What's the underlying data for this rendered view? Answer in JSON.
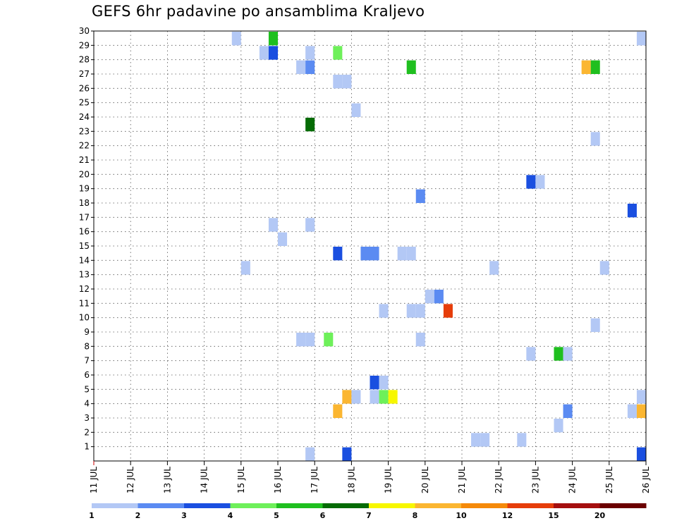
{
  "chart_data": {
    "type": "heatmap",
    "title": "GEFS 6hr padavine po ansamblima Kraljevo",
    "y_tick_labels": [
      "1",
      "2",
      "3",
      "4",
      "5",
      "6",
      "7",
      "8",
      "9",
      "10",
      "11",
      "12",
      "13",
      "14",
      "15",
      "16",
      "17",
      "18",
      "19",
      "20",
      "21",
      "22",
      "23",
      "24",
      "25",
      "26",
      "27",
      "28",
      "29",
      "30"
    ],
    "ylim": [
      0,
      30
    ],
    "x_tick_labels": [
      "11 JUL",
      "12 JUL",
      "13 JUL",
      "14 JUL",
      "15 JUL",
      "16 JUL",
      "17 JUL",
      "18 JUL",
      "19 JUL",
      "20 JUL",
      "21 JUL",
      "22 JUL",
      "23 JUL",
      "24 JUL",
      "25 JUL",
      "26 JUL"
    ],
    "x_unit": "day of July (fractional, 6-hour steps)",
    "xlim": [
      11,
      26
    ],
    "grid": true,
    "grid_style": "dotted",
    "colorbar": {
      "labels": [
        "1",
        "2",
        "3",
        "4",
        "5",
        "6",
        "7",
        "8",
        "10",
        "12",
        "15",
        "20"
      ],
      "colors": [
        "#b3c8f5",
        "#5b8bf2",
        "#1a4fe0",
        "#6ef05a",
        "#1fbf1f",
        "#056b05",
        "#f7f700",
        "#fbb631",
        "#f58a0a",
        "#e63d0a",
        "#a50f0f",
        "#6b0000"
      ]
    },
    "cells": [
      {
        "day": 14.75,
        "member": 30,
        "v": 1
      },
      {
        "day": 15.75,
        "member": 30,
        "v": 5
      },
      {
        "day": 25.75,
        "member": 30,
        "v": 1
      },
      {
        "day": 15.5,
        "member": 29,
        "v": 1
      },
      {
        "day": 15.75,
        "member": 29,
        "v": 3
      },
      {
        "day": 16.75,
        "member": 29,
        "v": 1
      },
      {
        "day": 17.5,
        "member": 29,
        "v": 4
      },
      {
        "day": 16.5,
        "member": 28,
        "v": 1
      },
      {
        "day": 16.75,
        "member": 28,
        "v": 2
      },
      {
        "day": 19.5,
        "member": 28,
        "v": 5
      },
      {
        "day": 24.25,
        "member": 28,
        "v": 8
      },
      {
        "day": 24.5,
        "member": 28,
        "v": 5
      },
      {
        "day": 17.5,
        "member": 27,
        "v": 1
      },
      {
        "day": 17.75,
        "member": 27,
        "v": 1
      },
      {
        "day": 18.0,
        "member": 25,
        "v": 1
      },
      {
        "day": 16.75,
        "member": 24,
        "v": 6
      },
      {
        "day": 24.5,
        "member": 23,
        "v": 1
      },
      {
        "day": 22.75,
        "member": 20,
        "v": 3
      },
      {
        "day": 23.0,
        "member": 20,
        "v": 1
      },
      {
        "day": 19.75,
        "member": 19,
        "v": 2
      },
      {
        "day": 25.5,
        "member": 18,
        "v": 3
      },
      {
        "day": 15.75,
        "member": 17,
        "v": 1
      },
      {
        "day": 16.75,
        "member": 17,
        "v": 1
      },
      {
        "day": 16.0,
        "member": 16,
        "v": 1
      },
      {
        "day": 17.5,
        "member": 15,
        "v": 3
      },
      {
        "day": 18.25,
        "member": 15,
        "v": 2
      },
      {
        "day": 18.5,
        "member": 15,
        "v": 2
      },
      {
        "day": 19.25,
        "member": 15,
        "v": 1
      },
      {
        "day": 19.5,
        "member": 15,
        "v": 1
      },
      {
        "day": 15.0,
        "member": 14,
        "v": 1
      },
      {
        "day": 21.75,
        "member": 14,
        "v": 1
      },
      {
        "day": 24.75,
        "member": 14,
        "v": 1
      },
      {
        "day": 20.0,
        "member": 12,
        "v": 1
      },
      {
        "day": 20.25,
        "member": 12,
        "v": 2
      },
      {
        "day": 18.75,
        "member": 11,
        "v": 1
      },
      {
        "day": 19.5,
        "member": 11,
        "v": 1
      },
      {
        "day": 19.75,
        "member": 11,
        "v": 1
      },
      {
        "day": 20.5,
        "member": 11,
        "v": 12
      },
      {
        "day": 24.5,
        "member": 10,
        "v": 1
      },
      {
        "day": 16.5,
        "member": 9,
        "v": 1
      },
      {
        "day": 16.75,
        "member": 9,
        "v": 1
      },
      {
        "day": 17.25,
        "member": 9,
        "v": 4
      },
      {
        "day": 19.75,
        "member": 9,
        "v": 1
      },
      {
        "day": 22.75,
        "member": 8,
        "v": 1
      },
      {
        "day": 23.5,
        "member": 8,
        "v": 5
      },
      {
        "day": 23.75,
        "member": 8,
        "v": 1
      },
      {
        "day": 18.5,
        "member": 6,
        "v": 3
      },
      {
        "day": 18.75,
        "member": 6,
        "v": 1
      },
      {
        "day": 17.75,
        "member": 5,
        "v": 8
      },
      {
        "day": 18.0,
        "member": 5,
        "v": 1
      },
      {
        "day": 18.5,
        "member": 5,
        "v": 1
      },
      {
        "day": 18.75,
        "member": 5,
        "v": 4
      },
      {
        "day": 19.0,
        "member": 5,
        "v": 7
      },
      {
        "day": 25.75,
        "member": 5,
        "v": 1
      },
      {
        "day": 17.5,
        "member": 4,
        "v": 8
      },
      {
        "day": 23.75,
        "member": 4,
        "v": 2
      },
      {
        "day": 25.5,
        "member": 4,
        "v": 1
      },
      {
        "day": 25.75,
        "member": 4,
        "v": 8
      },
      {
        "day": 23.5,
        "member": 3,
        "v": 1
      },
      {
        "day": 21.25,
        "member": 2,
        "v": 1
      },
      {
        "day": 21.5,
        "member": 2,
        "v": 1
      },
      {
        "day": 22.5,
        "member": 2,
        "v": 1
      },
      {
        "day": 16.75,
        "member": 1,
        "v": 1
      },
      {
        "day": 17.75,
        "member": 1,
        "v": 3
      },
      {
        "day": 25.75,
        "member": 1,
        "v": 3
      }
    ]
  }
}
